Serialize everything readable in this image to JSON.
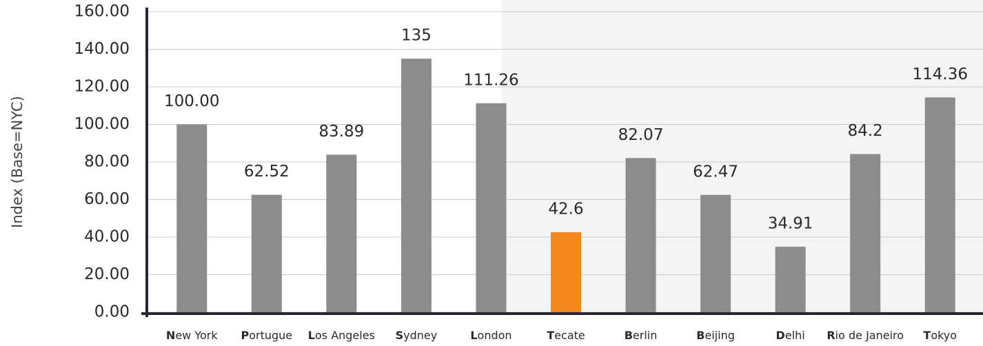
{
  "chart_data": {
    "type": "bar",
    "y_label": "Index (Base=NYC)",
    "categories": [
      "New York",
      "Portugue",
      "Los Angeles",
      "Sydney",
      "London",
      "Tecate",
      "Berlin",
      "Beijing",
      "Delhi",
      "Rio de Janeiro",
      "Tokyo"
    ],
    "values": [
      100,
      62.52,
      83.89,
      135,
      111.26,
      42.6,
      82.07,
      62.47,
      34.91,
      84.2,
      114.36
    ],
    "value_labels": [
      "100.00",
      "62.52",
      "83.89",
      "135",
      "111.26",
      "42.6",
      "82.07",
      "62.47",
      "34.91",
      "84.2",
      "114.36"
    ],
    "colors": [
      "#8c8c8c",
      "#8c8c8c",
      "#8c8c8c",
      "#8c8c8c",
      "#8c8c8c",
      "#f5871f",
      "#8c8c8c",
      "#8c8c8c",
      "#8c8c8c",
      "#8c8c8c",
      "#8c8c8c"
    ],
    "ylim": [
      0,
      160
    ],
    "yticks": [
      {
        "value": 0,
        "label": "0.00"
      },
      {
        "value": 20,
        "label": "20.00"
      },
      {
        "value": 40,
        "label": "40.00"
      },
      {
        "value": 60,
        "label": "60.00"
      },
      {
        "value": 80,
        "label": "80.00"
      },
      {
        "value": 100,
        "label": "100.00"
      },
      {
        "value": 120,
        "label": "120.00"
      },
      {
        "value": 140,
        "label": "140.00"
      },
      {
        "value": 160,
        "label": "160.00"
      }
    ],
    "grid": true
  }
}
